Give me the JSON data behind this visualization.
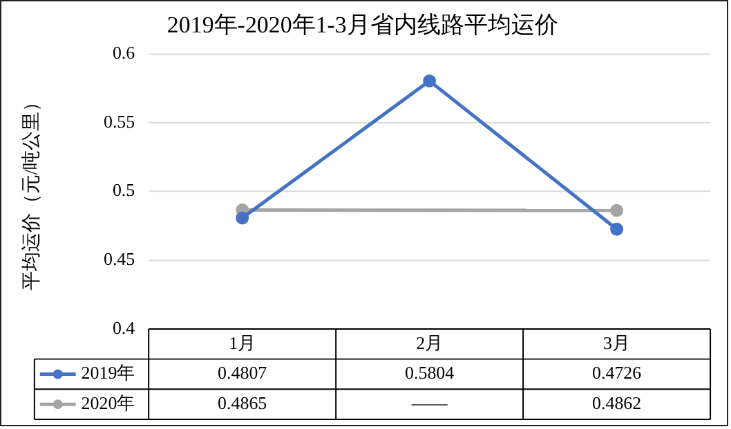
{
  "chart_data": {
    "type": "line",
    "title": "2019年-2020年1-3月省内线路平均运价",
    "ylabel": "平均运价（元/吨公里）",
    "categories": [
      "1月",
      "2月",
      "3月"
    ],
    "series": [
      {
        "name": "2019年",
        "color": "#4472c4",
        "values": [
          0.4807,
          0.5804,
          0.4726
        ],
        "value_labels": [
          "0.4807",
          "0.5804",
          "0.4726"
        ]
      },
      {
        "name": "2020年",
        "color": "#a5a5a5",
        "values": [
          0.4865,
          null,
          0.4862
        ],
        "value_labels": [
          "0.4865",
          "——",
          "0.4862"
        ]
      }
    ],
    "ylim": [
      0.4,
      0.6
    ],
    "yticks": [
      0.4,
      0.45,
      0.5,
      0.55,
      0.6
    ],
    "grid": "y",
    "legend": "bottom",
    "marker": "circle",
    "line_style": "solid"
  }
}
